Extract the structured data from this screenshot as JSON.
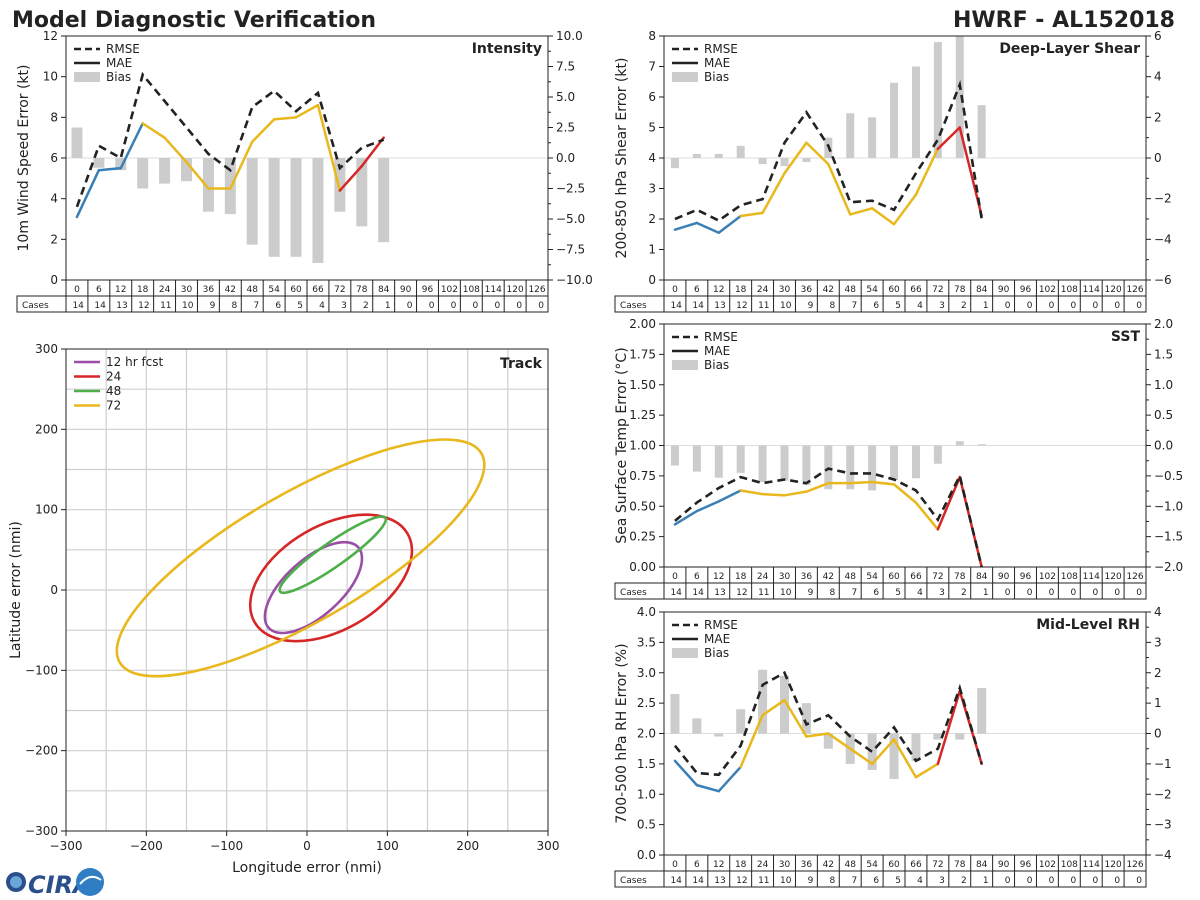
{
  "header": {
    "title": "Model Diagnostic Verification",
    "model_storm": "HWRF - AL152018",
    "logo_text": "CIRA"
  },
  "colors": {
    "rmse": "#222222",
    "mae_0_18": "#3a7fb5",
    "mae_24_72": "#e8b81c",
    "mae_78_84": "#d62728",
    "bias": "#cccccc",
    "track_12": "#9b4ea5",
    "track_24": "#d62728",
    "track_48": "#4daf4a",
    "track_72": "#e8b81c"
  },
  "table": {
    "cases_label": "Cases",
    "lead_hours": [
      "0",
      "6",
      "12",
      "18",
      "24",
      "30",
      "36",
      "42",
      "48",
      "54",
      "60",
      "66",
      "72",
      "78",
      "84",
      "90",
      "96",
      "102",
      "108",
      "114",
      "120",
      "126"
    ],
    "cases": [
      "14",
      "14",
      "13",
      "12",
      "11",
      "10",
      "9",
      "8",
      "7",
      "6",
      "5",
      "4",
      "3",
      "2",
      "1",
      "0",
      "0",
      "0",
      "0",
      "0",
      "0",
      "0"
    ]
  },
  "legend_err": [
    "RMSE",
    "MAE",
    "Bias"
  ],
  "chart_data": [
    {
      "id": "intensity",
      "type": "line",
      "title": "Intensity",
      "ylabel": "10m Wind Speed Error (kt)",
      "ylim": [
        0,
        12
      ],
      "yticks": [
        "0",
        "2",
        "4",
        "6",
        "8",
        "10",
        "12"
      ],
      "y2lim": [
        -10,
        10
      ],
      "y2ticks": [
        "−10.0",
        "−7.5",
        "−5.0",
        "−2.5",
        "0.0",
        "2.5",
        "5.0",
        "7.5",
        "10.0"
      ],
      "x": [
        0,
        6,
        12,
        18,
        24,
        30,
        36,
        42,
        48,
        54,
        60,
        66,
        72,
        78,
        84
      ],
      "rmse": [
        3.6,
        6.6,
        6.0,
        10.1,
        8.8,
        7.5,
        6.2,
        5.4,
        8.5,
        9.3,
        8.3,
        9.2,
        5.5,
        6.5,
        6.9
      ],
      "mae": [
        3.1,
        5.4,
        5.5,
        7.7,
        7.0,
        5.8,
        4.5,
        4.5,
        6.8,
        7.9,
        8.0,
        8.6,
        4.4,
        5.6,
        7.0
      ],
      "bias": [
        2.5,
        -0.8,
        -1.0,
        -2.5,
        -2.1,
        -1.9,
        -4.4,
        -4.6,
        -7.1,
        -8.1,
        -8.1,
        -8.6,
        -4.4,
        -5.6,
        -6.9
      ]
    },
    {
      "id": "shear",
      "type": "line",
      "title": "Deep-Layer Shear",
      "ylabel": "200-850 hPa Shear Error (kt)",
      "ylim": [
        0,
        8
      ],
      "yticks": [
        "0",
        "1",
        "2",
        "3",
        "4",
        "5",
        "6",
        "7",
        "8"
      ],
      "y2lim": [
        -6,
        6
      ],
      "y2ticks": [
        "−6",
        "−4",
        "−2",
        "0",
        "2",
        "4",
        "6"
      ],
      "x": [
        0,
        6,
        12,
        18,
        24,
        30,
        36,
        42,
        48,
        54,
        60,
        66,
        72,
        78,
        84
      ],
      "rmse": [
        2.0,
        2.3,
        1.95,
        2.45,
        2.65,
        4.5,
        5.5,
        4.4,
        2.55,
        2.6,
        2.3,
        3.5,
        4.6,
        6.4,
        2.0
      ],
      "mae": [
        1.65,
        1.87,
        1.55,
        2.1,
        2.2,
        3.5,
        4.5,
        3.8,
        2.15,
        2.35,
        1.83,
        2.8,
        4.3,
        5.0,
        2.1
      ],
      "bias": [
        -0.5,
        0.2,
        0.2,
        0.6,
        -0.3,
        -0.4,
        -0.2,
        1.0,
        2.2,
        2.0,
        3.7,
        4.5,
        5.7,
        6.0,
        2.6
      ]
    },
    {
      "id": "sst",
      "type": "line",
      "title": "SST",
      "ylabel": "Sea Surface Temp Error (°C)",
      "ylim": [
        0,
        2
      ],
      "yticks": [
        "0.00",
        "0.25",
        "0.50",
        "0.75",
        "1.00",
        "1.25",
        "1.50",
        "1.75",
        "2.00"
      ],
      "y2lim": [
        -2,
        2
      ],
      "y2ticks": [
        "−2.0",
        "−1.5",
        "−1.0",
        "−0.5",
        "0.0",
        "0.5",
        "1.0",
        "1.5",
        "2.0"
      ],
      "x": [
        0,
        6,
        12,
        18,
        24,
        30,
        36,
        42,
        48,
        54,
        60,
        66,
        72,
        78,
        84
      ],
      "rmse": [
        0.38,
        0.53,
        0.65,
        0.74,
        0.69,
        0.72,
        0.69,
        0.81,
        0.77,
        0.77,
        0.72,
        0.63,
        0.39,
        0.75,
        0.0
      ],
      "mae": [
        0.35,
        0.46,
        0.54,
        0.63,
        0.6,
        0.59,
        0.62,
        0.69,
        0.69,
        0.7,
        0.68,
        0.53,
        0.31,
        0.74,
        0.0
      ],
      "bias": [
        -0.33,
        -0.43,
        -0.53,
        -0.45,
        -0.6,
        -0.58,
        -0.65,
        -0.72,
        -0.72,
        -0.74,
        -0.57,
        -0.54,
        -0.3,
        0.07,
        0.02
      ]
    },
    {
      "id": "rh",
      "type": "line",
      "title": "Mid-Level RH",
      "ylabel": "700-500 hPa RH Error (%)",
      "ylim": [
        0,
        4
      ],
      "yticks": [
        "0.0",
        "0.5",
        "1.0",
        "1.5",
        "2.0",
        "2.5",
        "3.0",
        "3.5",
        "4.0"
      ],
      "y2lim": [
        -4,
        4
      ],
      "y2ticks": [
        "−4",
        "−3",
        "−2",
        "−1",
        "0",
        "1",
        "2",
        "3",
        "4"
      ],
      "x": [
        0,
        6,
        12,
        18,
        24,
        30,
        36,
        42,
        48,
        54,
        60,
        66,
        72,
        78,
        84
      ],
      "rmse": [
        1.8,
        1.35,
        1.32,
        1.8,
        2.8,
        3.0,
        2.15,
        2.3,
        1.95,
        1.7,
        2.1,
        1.55,
        1.75,
        2.75,
        1.5
      ],
      "mae": [
        1.55,
        1.15,
        1.05,
        1.45,
        2.3,
        2.55,
        1.95,
        2.0,
        1.75,
        1.5,
        1.9,
        1.28,
        1.5,
        2.7,
        1.5
      ],
      "bias": [
        1.3,
        0.5,
        -0.1,
        0.8,
        2.1,
        1.9,
        1.0,
        -0.5,
        -1.0,
        -1.2,
        -1.5,
        -0.9,
        -0.2,
        -0.2,
        1.5
      ]
    },
    {
      "id": "track",
      "type": "ellipse",
      "title": "Track",
      "xlabel": "Longitude error (nmi)",
      "ylabel": "Latitude error (nmi)",
      "xlim": [
        -300,
        300
      ],
      "ylim": [
        -300,
        300
      ],
      "xticks": [
        "−300",
        "−200",
        "−100",
        "0",
        "100",
        "200",
        "300"
      ],
      "yticks": [
        "−300",
        "−200",
        "−100",
        "0",
        "100",
        "200",
        "300"
      ],
      "series": [
        {
          "name": "12 hr fcst",
          "cx": 8,
          "cy": 3,
          "rx": 75,
          "ry": 35,
          "angle_deg": 42
        },
        {
          "name": "24",
          "cx": 30,
          "cy": 15,
          "rx": 110,
          "ry": 65,
          "angle_deg": 30
        },
        {
          "name": "48",
          "cx": 32,
          "cy": 44,
          "rx": 80,
          "ry": 15,
          "angle_deg": 35
        },
        {
          "name": "72",
          "cx": -8,
          "cy": 40,
          "rx": 260,
          "ry": 80,
          "angle_deg": 30
        }
      ]
    }
  ]
}
